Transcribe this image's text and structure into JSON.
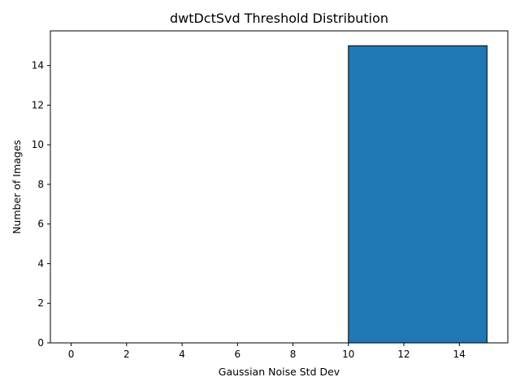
{
  "chart_data": {
    "type": "bar",
    "title": "dwtDctSvd Threshold Distribution",
    "xlabel": "Gaussian Noise Std Dev",
    "ylabel": "Number of Images",
    "bins": [
      {
        "start": 0,
        "end": 5,
        "count": 0
      },
      {
        "start": 5,
        "end": 10,
        "count": 0
      },
      {
        "start": 10,
        "end": 15,
        "count": 15
      }
    ],
    "xlim": [
      -0.75,
      15.75
    ],
    "ylim": [
      0,
      15.75
    ],
    "xticks": [
      0,
      2,
      4,
      6,
      8,
      10,
      12,
      14
    ],
    "yticks": [
      0,
      2,
      4,
      6,
      8,
      10,
      12,
      14
    ],
    "grid": false,
    "colors": {
      "bar_fill": "#1f77b4",
      "bar_edge": "#000000",
      "axis": "#000000"
    }
  }
}
